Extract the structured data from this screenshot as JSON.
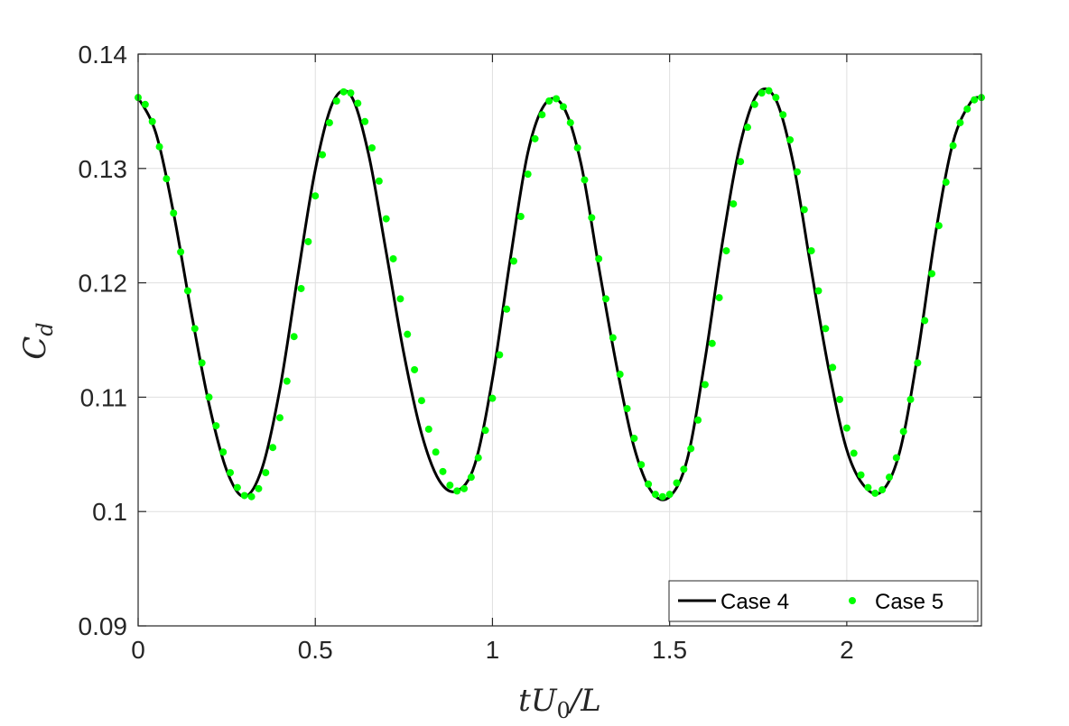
{
  "chart_data": {
    "type": "line",
    "xlabel": "tU0/L",
    "ylabel": "Cd",
    "xlim": [
      0,
      2.38
    ],
    "ylim": [
      0.09,
      0.14
    ],
    "xticks": [
      0,
      0.5,
      1,
      1.5,
      2
    ],
    "xtick_labels": [
      "0",
      "0.5",
      "1",
      "1.5",
      "2"
    ],
    "yticks": [
      0.09,
      0.1,
      0.11,
      0.12,
      0.13,
      0.14
    ],
    "ytick_labels": [
      "0.09",
      "0.1",
      "0.11",
      "0.12",
      "0.13",
      "0.14"
    ],
    "grid": true,
    "legend": {
      "placement": "bottom-right",
      "orientation": "horizontal"
    },
    "series": [
      {
        "name": "Case 4",
        "style": "line",
        "color": "#000000",
        "x": [
          0.0,
          0.05,
          0.1,
          0.15,
          0.2,
          0.25,
          0.3,
          0.35,
          0.4,
          0.45,
          0.5,
          0.55,
          0.6,
          0.65,
          0.7,
          0.75,
          0.8,
          0.85,
          0.9,
          0.95,
          1.0,
          1.05,
          1.1,
          1.15,
          1.2,
          1.25,
          1.3,
          1.35,
          1.4,
          1.45,
          1.5,
          1.55,
          1.6,
          1.65,
          1.7,
          1.75,
          1.8,
          1.85,
          1.9,
          1.95,
          2.0,
          2.05,
          2.1,
          2.15,
          2.2,
          2.25,
          2.3,
          2.35,
          2.38
        ],
        "y": [
          0.1362,
          0.1331,
          0.1261,
          0.1174,
          0.1094,
          0.1036,
          0.1013,
          0.1038,
          0.1107,
          0.1205,
          0.1299,
          0.1358,
          0.1364,
          0.1313,
          0.1227,
          0.1138,
          0.1068,
          0.1027,
          0.1018,
          0.1041,
          0.1116,
          0.122,
          0.1314,
          0.1357,
          0.1354,
          0.1304,
          0.1214,
          0.1128,
          0.1056,
          0.1017,
          0.1013,
          0.1046,
          0.1133,
          0.1237,
          0.1322,
          0.1366,
          0.136,
          0.1303,
          0.1211,
          0.1123,
          0.1054,
          0.1022,
          0.1018,
          0.1053,
          0.1137,
          0.1242,
          0.1323,
          0.1358,
          0.1362
        ]
      },
      {
        "name": "Case 5",
        "style": "markers",
        "color": "#00ff00",
        "x": [
          0.0,
          0.02,
          0.04,
          0.06,
          0.08,
          0.1,
          0.12,
          0.14,
          0.16,
          0.18,
          0.2,
          0.22,
          0.24,
          0.26,
          0.28,
          0.3,
          0.32,
          0.34,
          0.36,
          0.38,
          0.4,
          0.42,
          0.44,
          0.46,
          0.48,
          0.5,
          0.52,
          0.54,
          0.56,
          0.58,
          0.6,
          0.62,
          0.64,
          0.66,
          0.68,
          0.7,
          0.72,
          0.74,
          0.76,
          0.78,
          0.8,
          0.82,
          0.84,
          0.86,
          0.88,
          0.9,
          0.92,
          0.94,
          0.96,
          0.98,
          1.0,
          1.02,
          1.04,
          1.06,
          1.08,
          1.1,
          1.12,
          1.14,
          1.16,
          1.18,
          1.2,
          1.22,
          1.24,
          1.26,
          1.28,
          1.3,
          1.32,
          1.34,
          1.36,
          1.38,
          1.4,
          1.42,
          1.44,
          1.46,
          1.48,
          1.5,
          1.52,
          1.54,
          1.56,
          1.58,
          1.6,
          1.62,
          1.64,
          1.66,
          1.68,
          1.7,
          1.72,
          1.74,
          1.76,
          1.78,
          1.8,
          1.82,
          1.84,
          1.86,
          1.88,
          1.9,
          1.92,
          1.94,
          1.96,
          1.98,
          2.0,
          2.02,
          2.04,
          2.06,
          2.08,
          2.1,
          2.12,
          2.14,
          2.16,
          2.18,
          2.2,
          2.22,
          2.24,
          2.26,
          2.28,
          2.3,
          2.32,
          2.34,
          2.36,
          2.38
        ],
        "y": [
          0.1362,
          0.1356,
          0.1341,
          0.1319,
          0.1291,
          0.1261,
          0.1227,
          0.1193,
          0.116,
          0.113,
          0.11,
          0.1075,
          0.1052,
          0.1034,
          0.1021,
          0.1014,
          0.1013,
          0.102,
          0.1034,
          0.1056,
          0.1082,
          0.1114,
          0.1153,
          0.1195,
          0.1236,
          0.1276,
          0.1312,
          0.134,
          0.1359,
          0.1367,
          0.1366,
          0.1357,
          0.1341,
          0.1318,
          0.1289,
          0.1256,
          0.1221,
          0.1186,
          0.1155,
          0.1124,
          0.1097,
          0.1072,
          0.1052,
          0.1035,
          0.1023,
          0.1018,
          0.102,
          0.103,
          0.1047,
          0.1071,
          0.1099,
          0.1137,
          0.1177,
          0.1219,
          0.1258,
          0.1295,
          0.1326,
          0.1347,
          0.1359,
          0.1361,
          0.1354,
          0.134,
          0.1318,
          0.129,
          0.1257,
          0.1221,
          0.1186,
          0.1152,
          0.112,
          0.109,
          0.1064,
          0.1041,
          0.1024,
          0.1015,
          0.1013,
          0.1015,
          0.1025,
          0.1037,
          0.1055,
          0.108,
          0.1111,
          0.1147,
          0.1187,
          0.1228,
          0.1269,
          0.1306,
          0.1336,
          0.1356,
          0.1366,
          0.1368,
          0.1362,
          0.1347,
          0.1325,
          0.1297,
          0.1264,
          0.1228,
          0.1193,
          0.116,
          0.1126,
          0.1098,
          0.1073,
          0.1051,
          0.1032,
          0.1021,
          0.1016,
          0.1019,
          0.103,
          0.1047,
          0.107,
          0.1098,
          0.113,
          0.1167,
          0.1208,
          0.125,
          0.1288,
          0.132,
          0.134,
          0.1352,
          0.136,
          0.1362
        ]
      }
    ]
  }
}
